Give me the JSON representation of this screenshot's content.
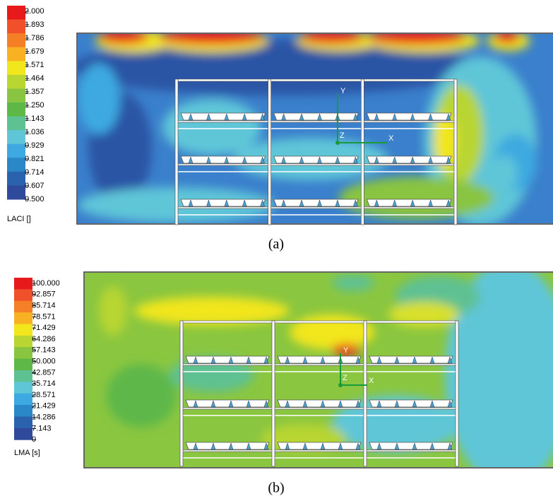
{
  "panels": [
    {
      "legend": {
        "title": "LACI []",
        "ticks": [
          "2.000",
          "1.893",
          "1.786",
          "1.679",
          "1.571",
          "1.464",
          "1.357",
          "1.250",
          "1.143",
          "1.036",
          "0.929",
          "0.821",
          "0.714",
          "0.607",
          "0.500"
        ]
      },
      "axes": {
        "y": "Y",
        "x": "X",
        "z": "Z"
      },
      "caption": "(a)"
    },
    {
      "legend": {
        "title": "LMA [s]",
        "ticks": [
          "100.000",
          "92.857",
          "85.714",
          "78.571",
          "71.429",
          "64.286",
          "57.143",
          "50.000",
          "42.857",
          "35.714",
          "28.571",
          "21.429",
          "14.286",
          "7.143",
          "0"
        ]
      },
      "axes": {
        "y": "Y",
        "x": "X",
        "z": "Z"
      },
      "caption": "(b)"
    }
  ]
}
